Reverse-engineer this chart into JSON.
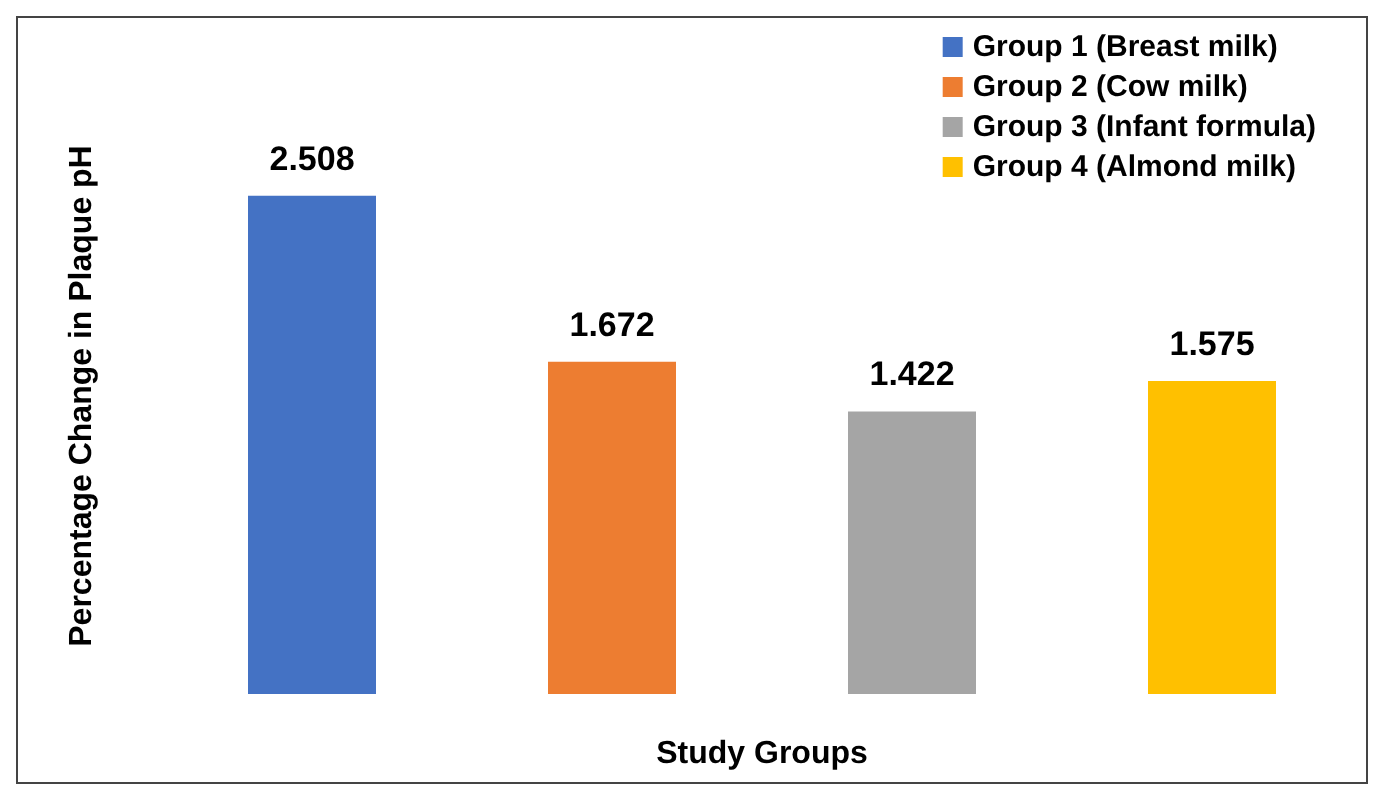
{
  "chart_data": {
    "type": "bar",
    "xlabel": "Study Groups",
    "ylabel": "Percentage Change in Plaque pH",
    "categories": [
      null,
      null,
      null,
      null
    ],
    "series": [
      {
        "name": "Group 1 (Breast milk)",
        "color": "#4472c4",
        "values": [
          2.508,
          null,
          null,
          null
        ]
      },
      {
        "name": "Group 2 (Cow milk)",
        "color": "#ed7d31",
        "values": [
          null,
          1.672,
          null,
          null
        ]
      },
      {
        "name": "Group 3 (Infant formula)",
        "color": "#a5a5a5",
        "values": [
          null,
          null,
          1.422,
          null
        ]
      },
      {
        "name": "Group 4 (Almond milk)",
        "color": "#ffc000",
        "values": [
          null,
          null,
          null,
          1.575
        ]
      }
    ],
    "stacked": true,
    "data_labels": true,
    "legend": "top right",
    "grid": false
  }
}
